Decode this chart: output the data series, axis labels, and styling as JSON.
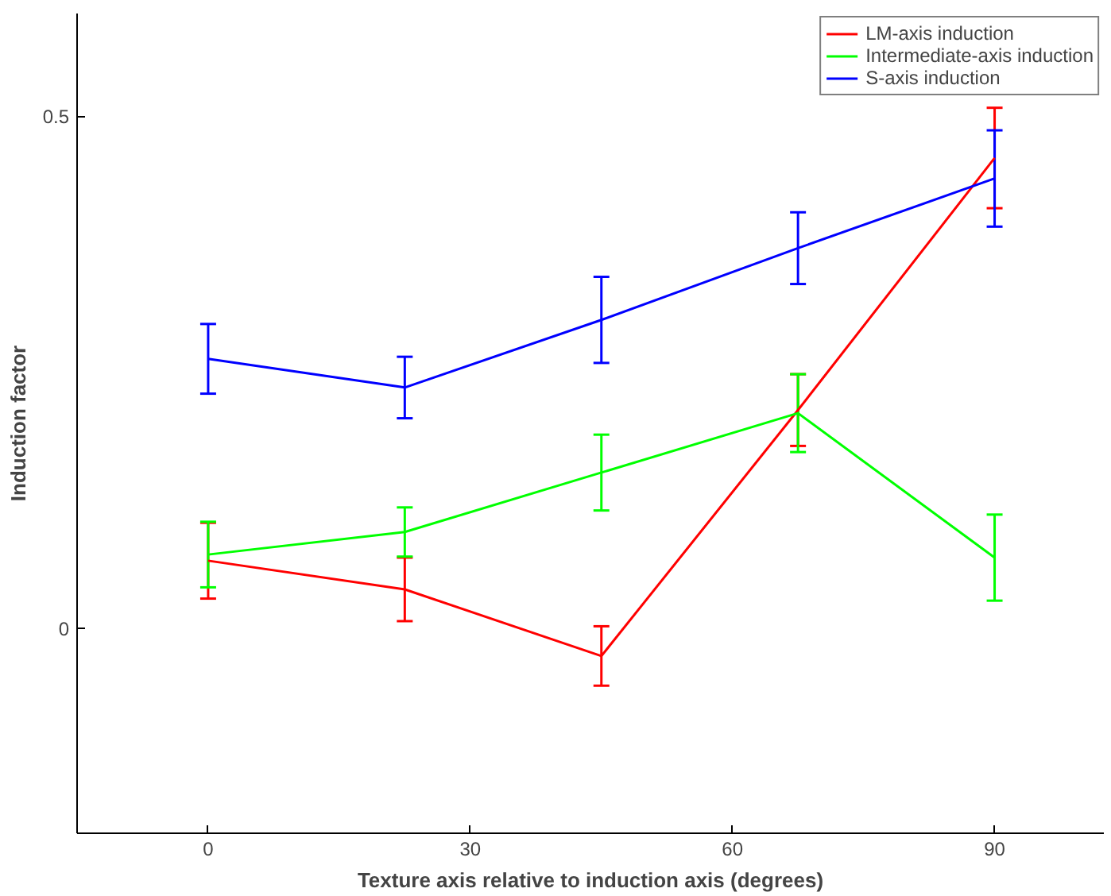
{
  "chart_data": {
    "type": "line",
    "xlabel": "Texture axis relative to induction axis (degrees)",
    "ylabel": "Induction factor",
    "x": [
      0,
      22.5,
      45,
      67.5,
      90
    ],
    "xlim": [
      -15,
      102.5
    ],
    "xticks": [
      0,
      30,
      60,
      90
    ],
    "ylim": [
      -0.2,
      0.6
    ],
    "yticks": [
      0,
      0.5
    ],
    "grid": false,
    "legend": "top right",
    "marker": "none",
    "line_style": "solid",
    "series": [
      {
        "name": "LM-axis induction",
        "color": "#ff0000",
        "values": [
          0.066,
          0.038,
          -0.027,
          0.213,
          0.459
        ],
        "errors": [
          0.037,
          0.031,
          0.029,
          0.035,
          0.049
        ]
      },
      {
        "name": "Intermediate-axis induction",
        "color": "#00ff00",
        "values": [
          0.072,
          0.094,
          0.152,
          0.21,
          0.069
        ],
        "errors": [
          0.032,
          0.024,
          0.037,
          0.038,
          0.042
        ]
      },
      {
        "name": "S-axis induction",
        "color": "#0000ff",
        "values": [
          0.263,
          0.235,
          0.301,
          0.371,
          0.439
        ],
        "errors": [
          0.034,
          0.03,
          0.042,
          0.035,
          0.047
        ]
      }
    ]
  }
}
